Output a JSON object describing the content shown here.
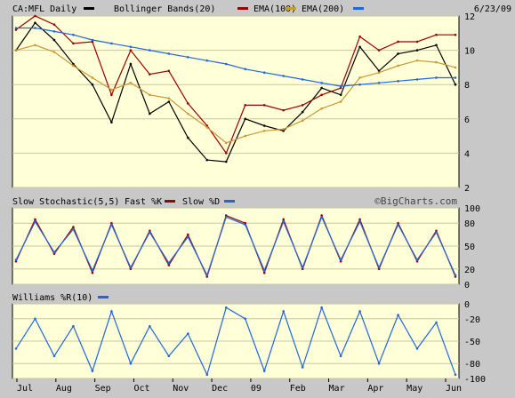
{
  "header": {
    "symbol": "CA:MFL Daily",
    "indicators": [
      {
        "label": "Bollinger Bands(20)",
        "color": "#990000"
      },
      {
        "label": "EMA(100)",
        "color": "#cc9933"
      },
      {
        "label": "EMA(200)",
        "color": "#2266dd"
      }
    ],
    "date": "6/23/09"
  },
  "watermark": "©BigCharts.com",
  "colors": {
    "price": "#000000",
    "bollinger": "#990000",
    "ema100": "#cc9933",
    "ema200": "#2266dd",
    "fastK": "#990000",
    "slowD": "#2266dd",
    "williams": "#2266dd"
  },
  "chart_data": [
    {
      "type": "line",
      "title": "CA:MFL Daily",
      "x": [
        "Jul",
        "Jul",
        "Aug",
        "Aug",
        "Sep",
        "Sep",
        "Oct",
        "Oct",
        "Nov",
        "Nov",
        "Dec",
        "Dec",
        "09",
        "09",
        "Feb",
        "Feb",
        "Mar",
        "Mar",
        "Apr",
        "Apr",
        "May",
        "May",
        "Jun",
        "Jun"
      ],
      "series": [
        {
          "name": "CA:MFL Daily",
          "values": [
            10.0,
            11.6,
            10.6,
            9.2,
            8.0,
            5.8,
            9.2,
            6.3,
            7.0,
            4.9,
            3.6,
            3.5,
            6.0,
            5.6,
            5.3,
            6.4,
            7.8,
            7.4,
            10.2,
            8.8,
            9.8,
            10.0,
            10.3,
            8.0
          ]
        },
        {
          "name": "Bollinger Bands(20)",
          "values": [
            11.2,
            12.0,
            11.5,
            10.4,
            10.5,
            7.4,
            10.0,
            8.6,
            8.8,
            6.9,
            5.6,
            4.0,
            6.8,
            6.8,
            6.5,
            6.8,
            7.4,
            7.8,
            10.8,
            10.0,
            10.5,
            10.5,
            10.9,
            10.9
          ]
        },
        {
          "name": "EMA(100)",
          "values": [
            10.0,
            10.3,
            9.9,
            9.1,
            8.4,
            7.7,
            8.1,
            7.4,
            7.2,
            6.3,
            5.5,
            4.6,
            5.0,
            5.3,
            5.4,
            5.9,
            6.6,
            7.0,
            8.4,
            8.7,
            9.1,
            9.4,
            9.3,
            9.0
          ]
        },
        {
          "name": "EMA(200)",
          "values": [
            11.3,
            11.3,
            11.1,
            10.9,
            10.6,
            10.4,
            10.2,
            10.0,
            9.8,
            9.6,
            9.4,
            9.2,
            8.9,
            8.7,
            8.5,
            8.3,
            8.1,
            7.9,
            8.0,
            8.1,
            8.2,
            8.3,
            8.4,
            8.4
          ]
        }
      ],
      "ylim": [
        2,
        12
      ],
      "yticks": [
        2,
        4,
        6,
        8,
        10,
        12
      ],
      "xticks": [
        "Jul",
        "Aug",
        "Sep",
        "Oct",
        "Nov",
        "Dec",
        "09",
        "Feb",
        "Mar",
        "Apr",
        "May",
        "Jun"
      ],
      "grid": true
    },
    {
      "type": "line",
      "title": "Slow Stochastic(5,5)",
      "x": [
        "Jul",
        "Jul",
        "Aug",
        "Aug",
        "Sep",
        "Sep",
        "Oct",
        "Oct",
        "Nov",
        "Nov",
        "Dec",
        "Dec",
        "09",
        "09",
        "Feb",
        "Feb",
        "Mar",
        "Mar",
        "Apr",
        "Apr",
        "May",
        "May",
        "Jun",
        "Jun"
      ],
      "series": [
        {
          "name": "Fast %K",
          "values": [
            30,
            85,
            40,
            75,
            15,
            80,
            20,
            70,
            25,
            65,
            10,
            90,
            80,
            15,
            85,
            20,
            90,
            30,
            85,
            20,
            80,
            30,
            70,
            10
          ]
        },
        {
          "name": "Slow %D",
          "values": [
            32,
            82,
            42,
            72,
            18,
            78,
            22,
            68,
            28,
            62,
            12,
            88,
            78,
            18,
            82,
            22,
            88,
            32,
            82,
            22,
            78,
            32,
            68,
            12
          ]
        }
      ],
      "ylim": [
        0,
        100
      ],
      "yticks": [
        0,
        20,
        50,
        80,
        100
      ],
      "grid": true
    },
    {
      "type": "line",
      "title": "Williams %R(10)",
      "x": [
        "Jul",
        "Jul",
        "Aug",
        "Aug",
        "Sep",
        "Sep",
        "Oct",
        "Oct",
        "Nov",
        "Nov",
        "Dec",
        "Dec",
        "09",
        "09",
        "Feb",
        "Feb",
        "Mar",
        "Mar",
        "Apr",
        "Apr",
        "May",
        "May",
        "Jun",
        "Jun"
      ],
      "series": [
        {
          "name": "Williams %R(10)",
          "values": [
            -60,
            -20,
            -70,
            -30,
            -90,
            -10,
            -80,
            -30,
            -70,
            -40,
            -95,
            -5,
            -20,
            -90,
            -10,
            -85,
            -5,
            -70,
            -10,
            -80,
            -15,
            -60,
            -25,
            -95
          ]
        }
      ],
      "ylim": [
        -100,
        0
      ],
      "yticks": [
        -100,
        -80,
        -50,
        -20,
        0
      ],
      "grid": true
    }
  ]
}
